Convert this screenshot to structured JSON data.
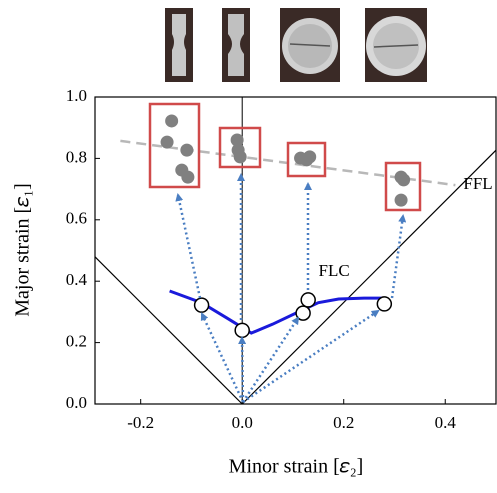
{
  "chart_data": {
    "type": "scatter",
    "x_label": "Minor strain [𝜀₂]",
    "y_label": "Major strain [𝜀₁]",
    "xlim": [
      -0.29,
      0.5
    ],
    "ylim": [
      0,
      1
    ],
    "xticks": [
      -0.2,
      {
        "value": 0,
        "label": "0.0"
      },
      0.2,
      0.4
    ],
    "yticks": [
      {
        "value": 0,
        "label": "0.0"
      },
      0.2,
      0.4,
      0.6,
      0.8,
      {
        "value": 1,
        "label": "1.0"
      }
    ],
    "series": [
      {
        "name": "FLC",
        "color": "#1a1adb",
        "mode": "line",
        "dash": false,
        "x": [
          -0.143,
          -0.08,
          -0.03,
          0.018,
          0.06,
          0.111,
          0.15,
          0.19,
          0.24,
          0.277
        ],
        "values": [
          0.368,
          0.33,
          0.28,
          0.231,
          0.26,
          0.3,
          0.33,
          0.342,
          0.345,
          0.345
        ]
      },
      {
        "name": "FFL",
        "color": "#b8b8b8",
        "mode": "line",
        "dash": true,
        "x": [
          -0.24,
          0.42
        ],
        "values": [
          0.857,
          0.713
        ]
      },
      {
        "color": "#000000",
        "mode": "markers",
        "marker": "open",
        "x": [
          -0.08,
          0.0,
          0.12,
          0.13,
          0.28
        ],
        "values": [
          0.322,
          0.24,
          0.296,
          0.339,
          0.326
        ]
      },
      {
        "color": "#808080",
        "mode": "markers",
        "marker": "filled",
        "x": [
          -0.139,
          -0.148,
          -0.109,
          -0.119,
          -0.107,
          -0.01,
          -0.008,
          -0.004,
          0.115,
          0.127,
          0.133,
          0.313,
          0.318,
          0.313
        ],
        "values": [
          0.922,
          0.853,
          0.827,
          0.762,
          0.739,
          0.86,
          0.827,
          0.805,
          0.801,
          0.795,
          0.805,
          0.739,
          0.73,
          0.664
        ]
      }
    ]
  }
}
